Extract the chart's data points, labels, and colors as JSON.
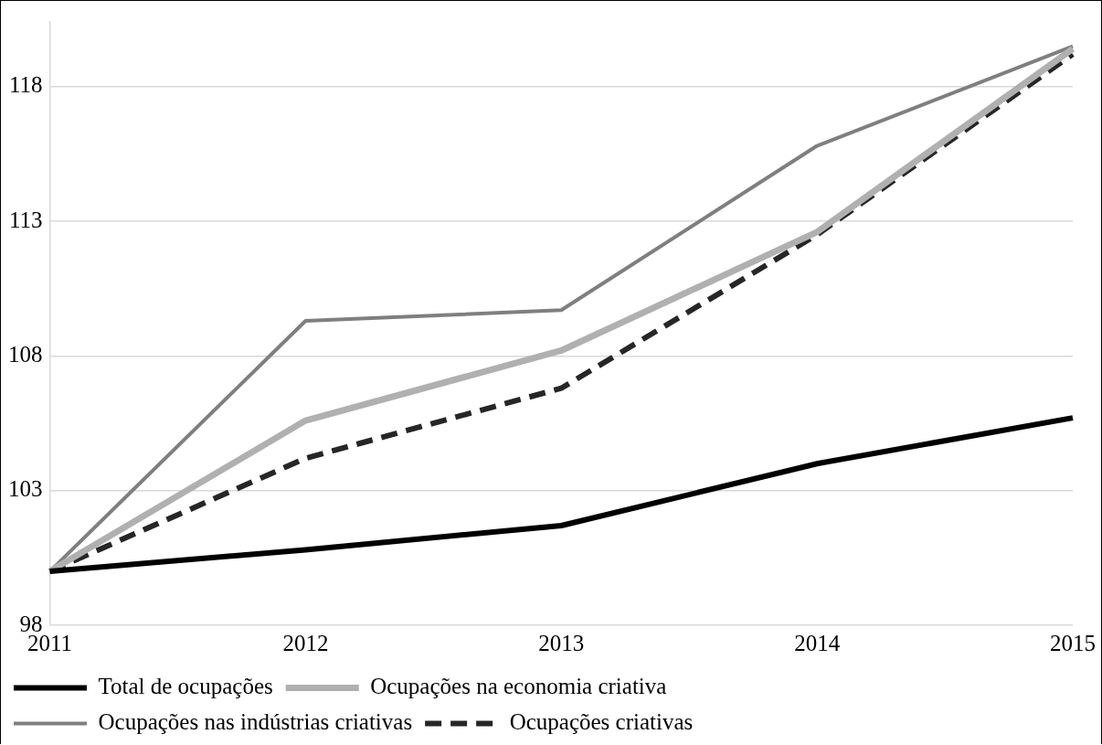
{
  "chart_data": {
    "type": "line",
    "categories": [
      "2011",
      "2012",
      "2013",
      "2014",
      "2015"
    ],
    "series": [
      {
        "name": "Total de ocupações",
        "color": "#000000",
        "line_style": "solid",
        "values": [
          100,
          100.8,
          101.7,
          104.0,
          105.7
        ]
      },
      {
        "name": "Ocupações na economia criativa",
        "color": "#b0b0b0",
        "line_style": "solid",
        "values": [
          100,
          105.6,
          108.2,
          112.6,
          119.4
        ]
      },
      {
        "name": "Ocupações nas indústrias criativas",
        "color": "#7f7f7f",
        "line_style": "solid",
        "values": [
          100,
          109.3,
          109.7,
          115.8,
          119.5
        ]
      },
      {
        "name": "Ocupações criativas",
        "color": "#262626",
        "line_style": "dashed",
        "values": [
          100,
          104.2,
          106.8,
          112.5,
          119.2
        ]
      }
    ],
    "ylim": [
      98,
      120.4
    ],
    "yticks": [
      98,
      103,
      108,
      113,
      118
    ],
    "grid": "y",
    "legend": "bottom",
    "marker": "none"
  }
}
